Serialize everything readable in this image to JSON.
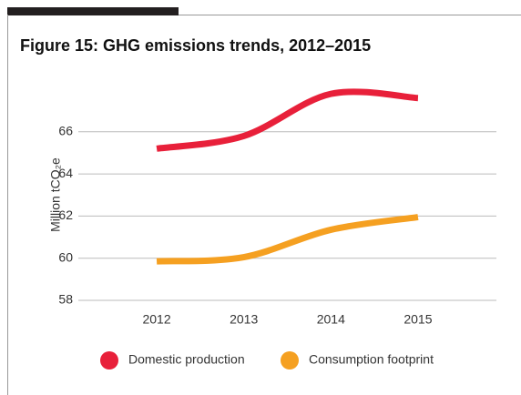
{
  "chart_data": {
    "type": "line",
    "title": "Figure 15: GHG emissions trends, 2012–2015",
    "y_label": "Million tCO₂e",
    "categories": [
      "2012",
      "2013",
      "2014",
      "2015"
    ],
    "series": [
      {
        "name": "Domestic production",
        "color": "#e8203a",
        "values": [
          65.2,
          65.8,
          67.8,
          67.6
        ]
      },
      {
        "name": "Consumption footprint",
        "color": "#f5a021",
        "values": [
          59.85,
          60.05,
          61.35,
          61.95
        ]
      }
    ],
    "ylim": [
      58,
      68
    ],
    "yticks": [
      58,
      60,
      62,
      64,
      66
    ],
    "grid": true
  }
}
